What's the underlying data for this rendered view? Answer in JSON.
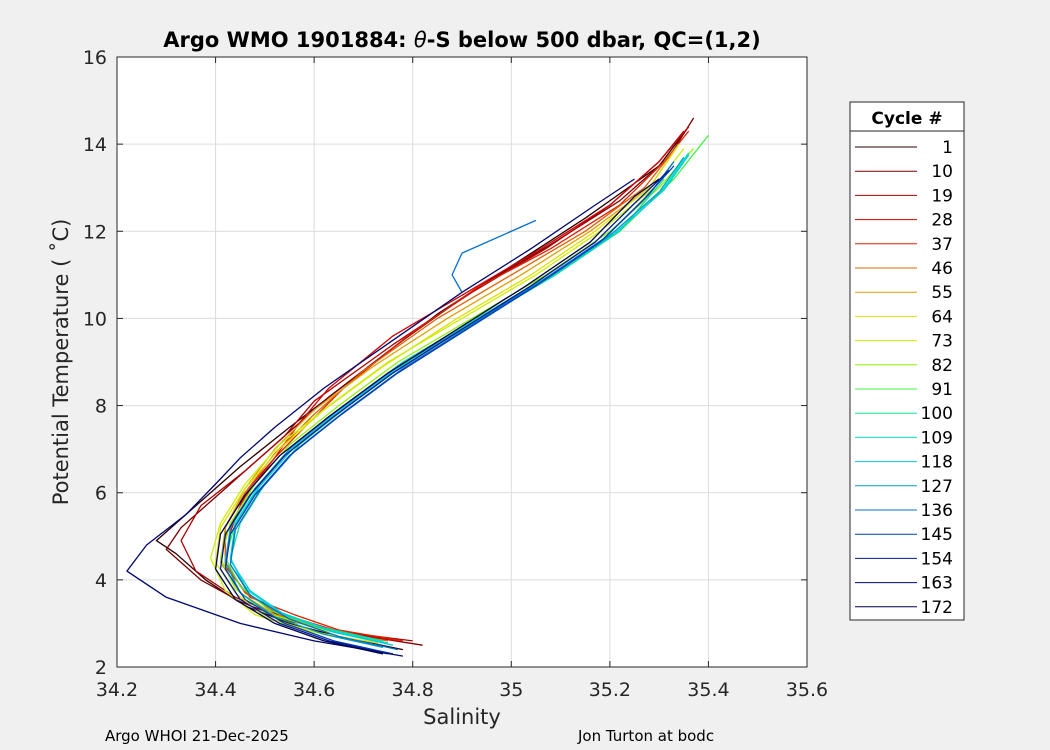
{
  "chart_data": {
    "type": "line",
    "title_prefix": "Argo WMO 1901884: ",
    "title_theta": "θ",
    "title_suffix": "-S below 500 dbar,  QC=(1,2)",
    "xlabel": "Salinity",
    "ylabel": "Potential Temperature ( ˚C)",
    "xlim": [
      34.2,
      35.6
    ],
    "ylim": [
      2,
      16
    ],
    "xticks": [
      34.2,
      34.4,
      34.6,
      34.8,
      35,
      35.2,
      35.4,
      35.6
    ],
    "xtick_labels": [
      "34.2",
      "34.4",
      "34.6",
      "34.8",
      "35",
      "35.2",
      "35.4",
      "35.6"
    ],
    "yticks": [
      2,
      4,
      6,
      8,
      10,
      12,
      14,
      16
    ],
    "ytick_labels": [
      "2",
      "4",
      "6",
      "8",
      "10",
      "12",
      "14",
      "16"
    ],
    "grid": true,
    "legend_title": "Cycle #",
    "legend_position": "right",
    "legend_entries": [
      {
        "label": "1",
        "color": "#2a0000"
      },
      {
        "label": "10",
        "color": "#7a0000"
      },
      {
        "label": "19",
        "color": "#b00000"
      },
      {
        "label": "28",
        "color": "#d40000"
      },
      {
        "label": "37",
        "color": "#e02000"
      },
      {
        "label": "46",
        "color": "#e06000"
      },
      {
        "label": "55",
        "color": "#e0a000"
      },
      {
        "label": "64",
        "color": "#e0e000"
      },
      {
        "label": "73",
        "color": "#c8f000"
      },
      {
        "label": "82",
        "color": "#90f000"
      },
      {
        "label": "91",
        "color": "#40f040"
      },
      {
        "label": "100",
        "color": "#10e090"
      },
      {
        "label": "109",
        "color": "#00e0c8"
      },
      {
        "label": "118",
        "color": "#00c8e0"
      },
      {
        "label": "127",
        "color": "#00a0c0"
      },
      {
        "label": "136",
        "color": "#0070d0"
      },
      {
        "label": "145",
        "color": "#0040b0"
      },
      {
        "label": "154",
        "color": "#001890"
      },
      {
        "label": "163",
        "color": "#000870"
      },
      {
        "label": "172",
        "color": "#000050"
      }
    ],
    "series": [
      {
        "color": "#2a0000",
        "x": [
          34.78,
          34.65,
          34.55,
          34.46,
          34.38,
          34.32,
          34.28,
          34.35,
          34.45,
          34.55,
          34.7,
          34.85,
          35.0,
          35.15,
          35.3,
          35.36
        ],
        "y": [
          2.4,
          2.7,
          3.0,
          3.4,
          4.0,
          4.6,
          4.9,
          5.6,
          6.6,
          7.5,
          8.8,
          10.1,
          11.2,
          12.3,
          13.5,
          14.4
        ]
      },
      {
        "color": "#7a0000",
        "x": [
          34.82,
          34.68,
          34.55,
          34.45,
          34.37,
          34.3,
          34.33,
          34.44,
          34.53,
          34.63,
          34.78,
          34.93,
          35.08,
          35.22,
          35.32,
          35.37
        ],
        "y": [
          2.5,
          2.75,
          3.05,
          3.5,
          4.0,
          4.7,
          5.2,
          6.3,
          7.2,
          8.2,
          9.5,
          10.7,
          11.7,
          12.7,
          13.7,
          14.6
        ]
      },
      {
        "color": "#b00000",
        "x": [
          34.8,
          34.66,
          34.55,
          34.44,
          34.36,
          34.33,
          34.37,
          34.46,
          34.54,
          34.6,
          34.76,
          34.92,
          35.07,
          35.2,
          35.3,
          35.35
        ],
        "y": [
          2.6,
          2.8,
          3.1,
          3.6,
          4.2,
          4.9,
          5.7,
          6.5,
          7.3,
          8.1,
          9.4,
          10.6,
          11.6,
          12.6,
          13.6,
          14.3
        ]
      },
      {
        "color": "#d40000",
        "x": [
          34.77,
          34.64,
          34.54,
          34.46,
          34.42,
          34.43,
          34.46,
          34.52,
          34.57,
          34.63,
          34.76,
          34.91,
          35.06,
          35.2,
          35.3,
          35.36
        ],
        "y": [
          2.6,
          2.85,
          3.2,
          3.7,
          4.4,
          5.1,
          6.0,
          6.8,
          7.6,
          8.4,
          9.6,
          10.6,
          11.6,
          12.6,
          13.6,
          14.4
        ]
      },
      {
        "color": "#e02000",
        "x": [
          34.78,
          34.65,
          34.56,
          34.47,
          34.42,
          34.42,
          34.46,
          34.52,
          34.58,
          34.66,
          34.79,
          34.93,
          35.08,
          35.22,
          35.31,
          35.36
        ],
        "y": [
          2.6,
          2.85,
          3.2,
          3.6,
          4.3,
          5.0,
          5.9,
          6.8,
          7.5,
          8.4,
          9.6,
          10.7,
          11.6,
          12.6,
          13.6,
          14.3
        ]
      },
      {
        "color": "#e06000",
        "x": [
          34.75,
          34.62,
          34.53,
          34.46,
          34.42,
          34.42,
          34.46,
          34.52,
          34.6,
          34.7,
          34.85,
          35.0,
          35.15,
          35.27,
          35.34
        ],
        "y": [
          2.6,
          2.85,
          3.2,
          3.7,
          4.4,
          5.2,
          6.0,
          6.9,
          7.8,
          8.8,
          10.0,
          11.0,
          12.0,
          13.0,
          14.0
        ]
      },
      {
        "color": "#e0a000",
        "x": [
          34.74,
          34.62,
          34.52,
          34.45,
          34.41,
          34.42,
          34.46,
          34.52,
          34.6,
          34.72,
          34.87,
          35.02,
          35.16,
          35.28,
          35.34
        ],
        "y": [
          2.6,
          2.85,
          3.2,
          3.7,
          4.4,
          5.2,
          6.1,
          7.0,
          7.9,
          8.9,
          10.0,
          11.0,
          12.0,
          13.0,
          14.0
        ]
      },
      {
        "color": "#e0e000",
        "x": [
          34.73,
          34.6,
          34.5,
          34.44,
          34.4,
          34.41,
          34.46,
          34.53,
          34.62,
          34.74,
          34.89,
          35.04,
          35.17,
          35.28,
          35.34
        ],
        "y": [
          2.55,
          2.8,
          3.15,
          3.7,
          4.4,
          5.2,
          6.1,
          7.0,
          7.9,
          8.9,
          10.0,
          11.0,
          12.0,
          13.0,
          14.0
        ]
      },
      {
        "color": "#c8f000",
        "x": [
          34.7,
          34.58,
          34.48,
          34.42,
          34.39,
          34.41,
          34.46,
          34.53,
          34.63,
          34.75,
          34.9,
          35.05,
          35.18,
          35.29,
          35.35
        ],
        "y": [
          2.55,
          2.85,
          3.2,
          3.75,
          4.5,
          5.3,
          6.2,
          7.1,
          8.0,
          9.0,
          10.0,
          11.0,
          12.0,
          13.0,
          13.9
        ]
      },
      {
        "color": "#90f000",
        "x": [
          34.72,
          34.6,
          34.5,
          34.44,
          34.41,
          34.43,
          34.48,
          34.55,
          34.65,
          34.77,
          34.92,
          35.07,
          35.2,
          35.3,
          35.37
        ],
        "y": [
          2.6,
          2.9,
          3.25,
          3.8,
          4.5,
          5.3,
          6.2,
          7.1,
          8.0,
          9.0,
          10.0,
          11.0,
          12.0,
          13.0,
          13.9
        ]
      },
      {
        "color": "#40f040",
        "x": [
          34.73,
          34.61,
          34.51,
          34.45,
          34.42,
          34.44,
          34.49,
          34.56,
          34.66,
          34.78,
          34.93,
          35.08,
          35.22,
          35.33,
          35.4
        ],
        "y": [
          2.6,
          2.9,
          3.3,
          3.85,
          4.5,
          5.3,
          6.2,
          7.1,
          8.0,
          9.0,
          10.0,
          11.0,
          12.0,
          13.2,
          14.2
        ]
      },
      {
        "color": "#10e090",
        "x": [
          34.74,
          34.62,
          34.52,
          34.46,
          34.43,
          34.45,
          34.5,
          34.57,
          34.67,
          34.79,
          34.94,
          35.09,
          35.22,
          35.31
        ],
        "y": [
          2.6,
          2.9,
          3.3,
          3.85,
          4.5,
          5.3,
          6.2,
          7.1,
          8.0,
          9.0,
          10.0,
          11.0,
          12.0,
          13.2
        ]
      },
      {
        "color": "#00e0c8",
        "x": [
          34.75,
          34.63,
          34.53,
          34.46,
          34.43,
          34.44,
          34.49,
          34.56,
          34.66,
          34.78,
          34.93,
          35.08,
          35.21,
          35.31,
          35.36
        ],
        "y": [
          2.55,
          2.85,
          3.25,
          3.8,
          4.5,
          5.3,
          6.2,
          7.1,
          8.0,
          9.0,
          10.0,
          11.0,
          12.0,
          13.0,
          13.8
        ]
      },
      {
        "color": "#00c8e0",
        "x": [
          34.76,
          34.64,
          34.54,
          34.47,
          34.43,
          34.44,
          34.49,
          34.56,
          34.66,
          34.78,
          34.93,
          35.08,
          35.21,
          35.31,
          35.36
        ],
        "y": [
          2.5,
          2.8,
          3.2,
          3.75,
          4.45,
          5.25,
          6.15,
          7.05,
          7.95,
          8.95,
          9.95,
          10.95,
          11.95,
          12.95,
          13.75
        ]
      },
      {
        "color": "#00a0c0",
        "x": [
          34.74,
          34.62,
          34.52,
          34.45,
          34.42,
          34.43,
          34.48,
          34.55,
          34.65,
          34.77,
          34.92,
          35.07,
          35.2,
          35.3,
          35.35
        ],
        "y": [
          2.45,
          2.75,
          3.15,
          3.7,
          4.4,
          5.2,
          6.1,
          7.0,
          7.9,
          8.9,
          9.9,
          10.9,
          11.9,
          12.9,
          13.7
        ]
      },
      {
        "color": "#0070d0",
        "x": [
          34.77,
          34.65,
          34.55,
          34.47,
          34.43,
          34.44,
          34.49,
          34.56,
          34.66,
          34.78,
          34.92,
          35.06,
          35.19,
          35.28,
          35.33
        ],
        "y": [
          2.4,
          2.7,
          3.1,
          3.65,
          4.35,
          5.15,
          6.05,
          6.95,
          7.85,
          8.85,
          9.85,
          10.85,
          11.85,
          12.85,
          13.6
        ]
      },
      {
        "color": "#0070d0",
        "x": [
          34.9,
          34.88,
          34.9,
          35.05
        ],
        "y": [
          10.6,
          11.0,
          11.5,
          12.25
        ]
      },
      {
        "color": "#0040b0",
        "x": [
          34.76,
          34.64,
          34.54,
          34.46,
          34.42,
          34.43,
          34.48,
          34.55,
          34.65,
          34.77,
          34.91,
          35.05,
          35.18,
          35.27,
          35.33
        ],
        "y": [
          2.3,
          2.6,
          3.0,
          3.55,
          4.25,
          5.05,
          5.95,
          6.85,
          7.75,
          8.75,
          9.75,
          10.75,
          11.75,
          12.75,
          13.5
        ]
      },
      {
        "color": "#001890",
        "x": [
          34.75,
          34.63,
          34.53,
          34.45,
          34.41,
          34.42,
          34.47,
          34.54,
          34.64,
          34.76,
          34.9,
          35.04,
          35.17,
          35.26,
          35.32
        ],
        "y": [
          2.3,
          2.6,
          3.0,
          3.55,
          4.25,
          5.05,
          5.95,
          6.85,
          7.75,
          8.75,
          9.75,
          10.75,
          11.75,
          12.75,
          13.4
        ]
      },
      {
        "color": "#000870",
        "x": [
          34.78,
          34.6,
          34.45,
          34.3,
          34.22,
          34.26,
          34.34,
          34.4,
          34.45,
          34.52,
          34.62,
          34.76,
          34.9,
          35.04,
          35.17,
          35.25
        ],
        "y": [
          2.25,
          2.6,
          3.0,
          3.6,
          4.2,
          4.8,
          5.5,
          6.2,
          6.8,
          7.5,
          8.4,
          9.5,
          10.6,
          11.6,
          12.6,
          13.2
        ]
      },
      {
        "color": "#000050",
        "x": [
          34.74,
          34.62,
          34.52,
          34.44,
          34.4,
          34.41,
          34.46,
          34.53,
          34.63,
          34.75,
          34.89,
          35.03,
          35.16,
          35.25,
          35.3
        ],
        "y": [
          2.3,
          2.6,
          3.0,
          3.55,
          4.25,
          5.05,
          5.95,
          6.85,
          7.75,
          8.75,
          9.75,
          10.75,
          11.75,
          12.8,
          13.2
        ]
      }
    ]
  },
  "footer": {
    "left": "Argo WHOI 21-Dec-2025",
    "right": "Jon Turton at bodc"
  }
}
